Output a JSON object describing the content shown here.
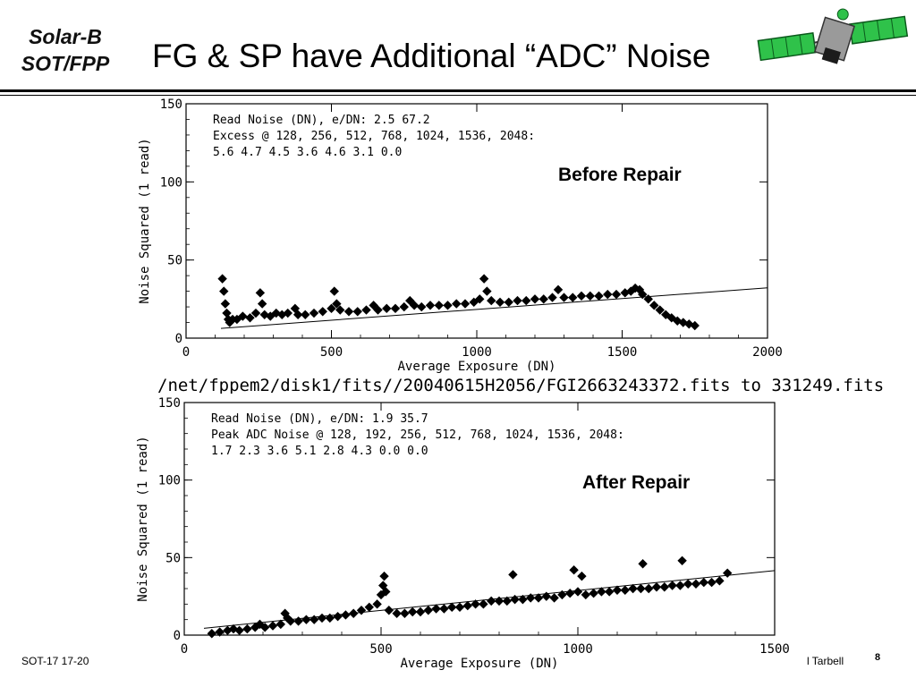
{
  "header": {
    "corner_line1": "Solar-B",
    "corner_line2": "SOT/FPP",
    "title": "FG & SP have Additional “ADC” Noise"
  },
  "footer": {
    "left": "SOT-17   17-20",
    "right": "l Tarbell",
    "page": "8"
  },
  "file_path": "/net/fppem2/disk1/fits//20040615H2056/FGI2663243372.fits to 331249.fits",
  "chart_data": [
    {
      "type": "scatter",
      "annotation": "Before Repair",
      "xlabel": "Average Exposure (DN)",
      "ylabel": "Noise Squared (1 read)",
      "xlim": [
        0,
        2000
      ],
      "ylim": [
        0,
        150
      ],
      "xticks": [
        0,
        500,
        1000,
        1500,
        2000
      ],
      "yticks": [
        0,
        50,
        100,
        150
      ],
      "text_lines": [
        "Read Noise (DN), e/DN:  2.5   67.2",
        "Excess @ 128, 256, 512, 768, 1024, 1536, 2048:",
        "  5.6  4.7  4.5  3.6  4.6  3.1  0.0"
      ],
      "fit_line": {
        "x": [
          120,
          2000
        ],
        "y": [
          6.25,
          32.2
        ]
      },
      "points": [
        [
          125,
          38
        ],
        [
          130,
          30
        ],
        [
          135,
          22
        ],
        [
          140,
          16
        ],
        [
          145,
          12
        ],
        [
          150,
          10
        ],
        [
          160,
          12
        ],
        [
          175,
          12
        ],
        [
          195,
          14
        ],
        [
          220,
          13
        ],
        [
          240,
          16
        ],
        [
          255,
          29
        ],
        [
          262,
          22
        ],
        [
          270,
          15
        ],
        [
          290,
          14
        ],
        [
          310,
          16
        ],
        [
          330,
          15
        ],
        [
          350,
          16
        ],
        [
          375,
          19
        ],
        [
          385,
          15
        ],
        [
          410,
          15
        ],
        [
          440,
          16
        ],
        [
          470,
          17
        ],
        [
          500,
          19
        ],
        [
          510,
          30
        ],
        [
          518,
          22
        ],
        [
          530,
          18
        ],
        [
          560,
          17
        ],
        [
          590,
          17
        ],
        [
          620,
          18
        ],
        [
          645,
          21
        ],
        [
          660,
          18
        ],
        [
          690,
          19
        ],
        [
          720,
          19
        ],
        [
          750,
          20
        ],
        [
          770,
          24
        ],
        [
          785,
          21
        ],
        [
          810,
          20
        ],
        [
          840,
          21
        ],
        [
          870,
          21
        ],
        [
          900,
          21
        ],
        [
          930,
          22
        ],
        [
          960,
          22
        ],
        [
          990,
          23
        ],
        [
          1010,
          25
        ],
        [
          1025,
          38
        ],
        [
          1035,
          30
        ],
        [
          1050,
          24
        ],
        [
          1080,
          23
        ],
        [
          1110,
          23
        ],
        [
          1140,
          24
        ],
        [
          1170,
          24
        ],
        [
          1200,
          25
        ],
        [
          1230,
          25
        ],
        [
          1260,
          26
        ],
        [
          1280,
          31
        ],
        [
          1300,
          26
        ],
        [
          1330,
          26
        ],
        [
          1360,
          27
        ],
        [
          1390,
          27
        ],
        [
          1420,
          27
        ],
        [
          1450,
          28
        ],
        [
          1480,
          28
        ],
        [
          1510,
          29
        ],
        [
          1530,
          30
        ],
        [
          1545,
          32
        ],
        [
          1560,
          31
        ],
        [
          1570,
          28
        ],
        [
          1590,
          25
        ],
        [
          1610,
          21
        ],
        [
          1630,
          18
        ],
        [
          1650,
          15
        ],
        [
          1670,
          13
        ],
        [
          1690,
          11
        ],
        [
          1710,
          10
        ],
        [
          1730,
          9
        ],
        [
          1750,
          8
        ]
      ]
    },
    {
      "type": "scatter",
      "annotation": "After Repair",
      "xlabel": "Average Exposure (DN)",
      "ylabel": "Noise Squared (1 read)",
      "xlim": [
        0,
        1500
      ],
      "ylim": [
        0,
        150
      ],
      "xticks": [
        0,
        500,
        1000,
        1500
      ],
      "yticks": [
        0,
        50,
        100,
        150
      ],
      "text_lines": [
        "Read Noise (DN), e/DN:  1.9   35.7",
        "Peak ADC Noise @ 128, 192, 256, 512, 768, 1024, 1536, 2048:",
        "  1.7  2.3  3.6  5.1  2.8  4.3  0.0  0.0"
      ],
      "fit_line": {
        "x": [
          50,
          1500
        ],
        "y": [
          4.4,
          41.6
        ]
      },
      "points": [
        [
          70,
          1
        ],
        [
          90,
          2
        ],
        [
          110,
          3
        ],
        [
          125,
          4
        ],
        [
          140,
          3
        ],
        [
          160,
          4
        ],
        [
          180,
          5
        ],
        [
          192,
          7
        ],
        [
          205,
          5
        ],
        [
          225,
          6
        ],
        [
          245,
          7
        ],
        [
          256,
          14
        ],
        [
          262,
          11
        ],
        [
          270,
          9
        ],
        [
          290,
          9
        ],
        [
          310,
          10
        ],
        [
          330,
          10
        ],
        [
          350,
          11
        ],
        [
          370,
          11
        ],
        [
          390,
          12
        ],
        [
          410,
          13
        ],
        [
          430,
          14
        ],
        [
          450,
          16
        ],
        [
          470,
          18
        ],
        [
          490,
          20
        ],
        [
          500,
          26
        ],
        [
          505,
          32
        ],
        [
          508,
          38
        ],
        [
          512,
          28
        ],
        [
          520,
          16
        ],
        [
          540,
          14
        ],
        [
          560,
          14
        ],
        [
          580,
          15
        ],
        [
          600,
          15
        ],
        [
          620,
          16
        ],
        [
          640,
          17
        ],
        [
          660,
          17
        ],
        [
          680,
          18
        ],
        [
          700,
          18
        ],
        [
          720,
          19
        ],
        [
          740,
          20
        ],
        [
          760,
          20
        ],
        [
          780,
          22
        ],
        [
          800,
          22
        ],
        [
          820,
          22
        ],
        [
          835,
          39
        ],
        [
          840,
          23
        ],
        [
          860,
          23
        ],
        [
          880,
          24
        ],
        [
          900,
          24
        ],
        [
          920,
          25
        ],
        [
          940,
          24
        ],
        [
          960,
          26
        ],
        [
          980,
          27
        ],
        [
          990,
          42
        ],
        [
          1000,
          28
        ],
        [
          1010,
          38
        ],
        [
          1020,
          26
        ],
        [
          1040,
          27
        ],
        [
          1060,
          28
        ],
        [
          1080,
          28
        ],
        [
          1100,
          29
        ],
        [
          1120,
          29
        ],
        [
          1140,
          30
        ],
        [
          1160,
          30
        ],
        [
          1165,
          46
        ],
        [
          1180,
          30
        ],
        [
          1200,
          31
        ],
        [
          1220,
          31
        ],
        [
          1240,
          32
        ],
        [
          1260,
          32
        ],
        [
          1265,
          48
        ],
        [
          1280,
          33
        ],
        [
          1300,
          33
        ],
        [
          1320,
          34
        ],
        [
          1340,
          34
        ],
        [
          1360,
          35
        ],
        [
          1380,
          40
        ]
      ]
    }
  ]
}
